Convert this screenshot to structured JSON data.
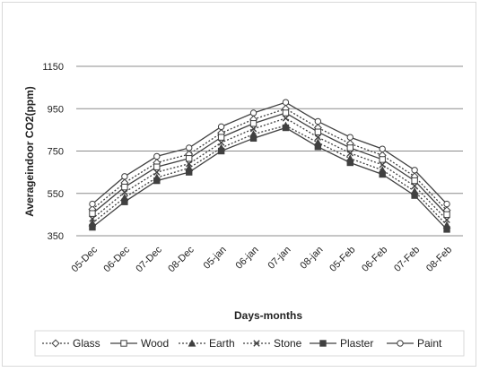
{
  "chart_data": {
    "type": "line",
    "title": "",
    "xlabel": "Days-months",
    "ylabel": "Averageindoor CO2(ppm)",
    "ylim": [
      350,
      1150
    ],
    "yticks": [
      350,
      550,
      750,
      950,
      1150
    ],
    "grid": true,
    "legend_position": "bottom",
    "categories": [
      "05-Dec",
      "06-Dec",
      "07-Dec",
      "08-Dec",
      "05-jan",
      "06-jan",
      "07-jan",
      "08-jan",
      "05-Feb",
      "06-Feb",
      "07-Feb",
      "08-Feb"
    ],
    "series": [
      {
        "name": "Glass",
        "marker": "diamond-open",
        "dash": "dotted",
        "values": [
          475,
          600,
          695,
          735,
          835,
          900,
          950,
          860,
          785,
          730,
          630,
          470
        ]
      },
      {
        "name": "Wood",
        "marker": "square-open",
        "dash": "solid",
        "values": [
          455,
          580,
          675,
          715,
          815,
          880,
          930,
          840,
          765,
          710,
          610,
          450
        ]
      },
      {
        "name": "Earth",
        "marker": "triangle",
        "dash": "dotted",
        "values": [
          410,
          530,
          625,
          670,
          765,
          830,
          870,
          790,
          715,
          660,
          560,
          400
        ]
      },
      {
        "name": "Stone",
        "marker": "x",
        "dash": "dotted",
        "values": [
          430,
          555,
          650,
          690,
          790,
          855,
          905,
          815,
          740,
          685,
          585,
          425
        ]
      },
      {
        "name": "Plaster",
        "marker": "square-filled",
        "dash": "solid",
        "values": [
          390,
          510,
          610,
          650,
          750,
          810,
          860,
          770,
          695,
          640,
          540,
          380
        ]
      },
      {
        "name": "Paint",
        "marker": "circle-open",
        "dash": "solid",
        "values": [
          500,
          630,
          725,
          765,
          865,
          930,
          980,
          890,
          815,
          760,
          660,
          500
        ]
      }
    ]
  },
  "colors": {
    "series_line": "#404040",
    "gridline": "#8c8c8c",
    "axis_text": "#222222",
    "frame": "#d9d9d9"
  }
}
